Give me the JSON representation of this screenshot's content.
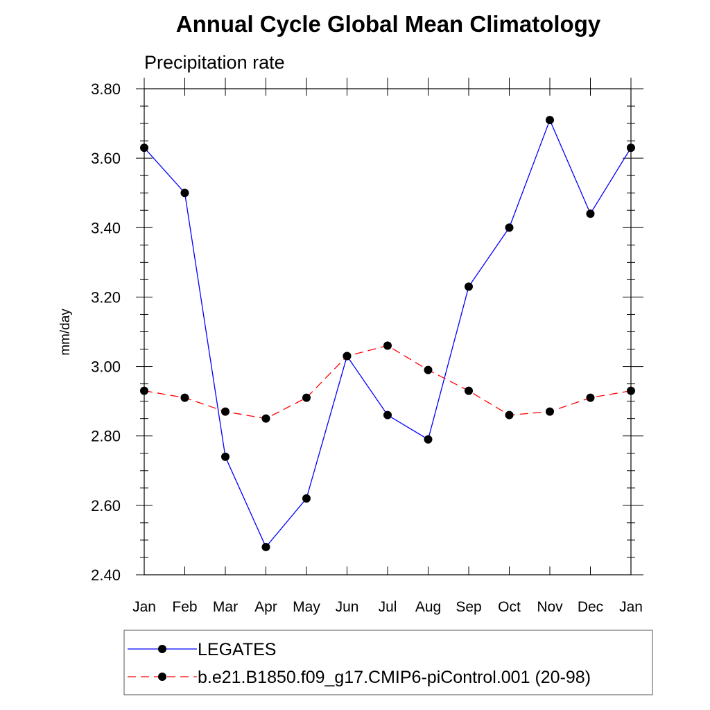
{
  "chart_data": {
    "type": "line",
    "title": "Annual Cycle Global Mean Climatology",
    "subtitle": "Precipitation rate",
    "xlabel": "",
    "ylabel": "mm/day",
    "categories": [
      "Jan",
      "Feb",
      "Mar",
      "Apr",
      "May",
      "Jun",
      "Jul",
      "Aug",
      "Sep",
      "Oct",
      "Nov",
      "Dec",
      "Jan"
    ],
    "ylim": [
      2.4,
      3.8
    ],
    "yticks": [
      "2.40",
      "2.60",
      "2.80",
      "3.00",
      "3.20",
      "3.40",
      "3.60",
      "3.80"
    ],
    "series": [
      {
        "name": "LEGATES",
        "color": "#0000ff",
        "dash": "solid",
        "marker": "circle",
        "values": [
          3.63,
          3.5,
          2.74,
          2.48,
          2.62,
          3.03,
          2.86,
          2.79,
          3.23,
          3.4,
          3.71,
          3.44,
          3.63
        ]
      },
      {
        "name": "b.e21.B1850.f09_g17.CMIP6-piControl.001 (20-98)",
        "color": "#ff0000",
        "dash": "dashed",
        "marker": "circle",
        "values": [
          2.93,
          2.91,
          2.87,
          2.85,
          2.91,
          3.03,
          3.06,
          2.99,
          2.93,
          2.86,
          2.87,
          2.91,
          2.93
        ]
      }
    ]
  }
}
